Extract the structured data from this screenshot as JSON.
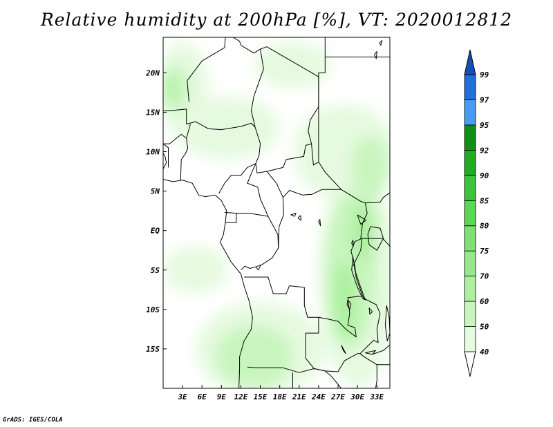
{
  "title": "Relative humidity at 200hPa [%], VT: 2020012812",
  "credit": "GrADS: IGES/COLA",
  "map": {
    "lon_range": [
      0,
      35
    ],
    "lat_range": [
      -20,
      24.5
    ],
    "lon_ticks": [
      {
        "lon": 3,
        "label": "3E"
      },
      {
        "lon": 6,
        "label": "6E"
      },
      {
        "lon": 9,
        "label": "9E"
      },
      {
        "lon": 12,
        "label": "12E"
      },
      {
        "lon": 15,
        "label": "15E"
      },
      {
        "lon": 18,
        "label": "18E"
      },
      {
        "lon": 21,
        "label": "21E"
      },
      {
        "lon": 24,
        "label": "24E"
      },
      {
        "lon": 27,
        "label": "27E"
      },
      {
        "lon": 30,
        "label": "30E"
      },
      {
        "lon": 33,
        "label": "33E"
      }
    ],
    "lat_ticks": [
      {
        "lat": 20,
        "label": "20N"
      },
      {
        "lat": 15,
        "label": "15N"
      },
      {
        "lat": 10,
        "label": "10N"
      },
      {
        "lat": 5,
        "label": "5N"
      },
      {
        "lat": 0,
        "label": "EQ"
      },
      {
        "lat": -5,
        "label": "5S"
      },
      {
        "lat": -10,
        "label": "10S"
      },
      {
        "lat": -15,
        "label": "15S"
      }
    ]
  },
  "colorbar": {
    "levels": [
      "40",
      "50",
      "60",
      "70",
      "75",
      "80",
      "85",
      "90",
      "92",
      "95",
      "97",
      "99"
    ],
    "colors": [
      "#ffffff",
      "#e6fae0",
      "#c8f5be",
      "#aef0a0",
      "#96e88a",
      "#7ee070",
      "#5cd655",
      "#3cc43a",
      "#22ab22",
      "#128f12",
      "#4a9cf0",
      "#2070d8",
      "#1450b8"
    ]
  },
  "fields": [
    {
      "level": "50",
      "color": "#e6fae0",
      "areas": [
        {
          "lon": 30,
          "lat": -6,
          "rx": 6,
          "ry": 14
        },
        {
          "lon": 15,
          "lat": -15,
          "rx": 10,
          "ry": 6
        },
        {
          "lon": 28,
          "lat": 10,
          "rx": 8,
          "ry": 6
        },
        {
          "lon": 3,
          "lat": 18,
          "rx": 4,
          "ry": 6
        },
        {
          "lon": 10,
          "lat": 13,
          "rx": 8,
          "ry": 4
        },
        {
          "lon": 5,
          "lat": -5,
          "rx": 5,
          "ry": 3
        },
        {
          "lon": 20,
          "lat": 21,
          "rx": 6,
          "ry": 3
        }
      ]
    },
    {
      "level": "60",
      "color": "#c8f5be",
      "areas": [
        {
          "lon": 29,
          "lat": -5,
          "rx": 4,
          "ry": 10
        },
        {
          "lon": 14,
          "lat": -16,
          "rx": 6,
          "ry": 4
        },
        {
          "lon": 2,
          "lat": 18,
          "rx": 2,
          "ry": 3
        },
        {
          "lon": 32,
          "lat": 8,
          "rx": 3,
          "ry": 4
        }
      ]
    },
    {
      "level": "70",
      "color": "#aef0a0",
      "areas": [
        {
          "lon": 28,
          "lat": -9,
          "rx": 2,
          "ry": 5
        },
        {
          "lon": 31,
          "lat": 0,
          "rx": 2,
          "ry": 4
        },
        {
          "lon": 1,
          "lat": 18,
          "rx": 1,
          "ry": 2
        }
      ]
    }
  ],
  "borders": {
    "coast": [
      [
        [
          0,
          6.5
        ],
        [
          1.5,
          6.2
        ],
        [
          3,
          6.4
        ],
        [
          4.5,
          6
        ],
        [
          5.5,
          4.5
        ],
        [
          6.5,
          4.3
        ],
        [
          8,
          4.5
        ],
        [
          9,
          3.8
        ],
        [
          9.8,
          2.5
        ],
        [
          9.6,
          1
        ],
        [
          9.3,
          -0.5
        ],
        [
          8.8,
          -1.5
        ],
        [
          10.5,
          -4
        ],
        [
          12,
          -5.5
        ],
        [
          12.5,
          -7
        ],
        [
          13.3,
          -9
        ],
        [
          13.8,
          -11
        ],
        [
          13.6,
          -12.5
        ],
        [
          12.5,
          -14
        ],
        [
          11.8,
          -16
        ],
        [
          11.8,
          -17.5
        ],
        [
          11.7,
          -20
        ]
      ],
      [
        [
          0,
          7.8
        ],
        [
          0.5,
          8.6
        ],
        [
          0.3,
          9.4
        ],
        [
          0,
          9.8
        ]
      ]
    ],
    "lakes": [
      [
        [
          32,
          0.5
        ],
        [
          33.5,
          0.3
        ],
        [
          34,
          -1
        ],
        [
          33,
          -2.5
        ],
        [
          31.8,
          -1.8
        ],
        [
          31.6,
          -0.5
        ],
        [
          32,
          0.5
        ]
      ],
      [
        [
          29.3,
          -3.3
        ],
        [
          29.6,
          -5
        ],
        [
          30.4,
          -7
        ],
        [
          31.2,
          -8.8
        ],
        [
          30.8,
          -8.6
        ],
        [
          29.9,
          -7
        ],
        [
          29.1,
          -5
        ],
        [
          29.3,
          -3.3
        ]
      ],
      [
        [
          29.4,
          -2
        ],
        [
          29.3,
          -1.2
        ],
        [
          29.1,
          -1.6
        ],
        [
          29.4,
          -2
        ]
      ],
      [
        [
          30,
          2
        ],
        [
          31.3,
          1.3
        ],
        [
          30.5,
          0.8
        ],
        [
          30,
          2
        ]
      ],
      [
        [
          34.5,
          -9.5
        ],
        [
          34.9,
          -11
        ],
        [
          35,
          -13
        ],
        [
          34.6,
          -14
        ],
        [
          34.3,
          -12
        ],
        [
          34.5,
          -9.5
        ]
      ],
      [
        [
          28.5,
          -8.8
        ],
        [
          29,
          -9.3
        ],
        [
          28.8,
          -10
        ],
        [
          28.4,
          -9.4
        ],
        [
          28.5,
          -8.8
        ]
      ],
      [
        [
          31.8,
          -9.8
        ],
        [
          32.3,
          -10.3
        ],
        [
          31.9,
          -10.6
        ],
        [
          31.8,
          -9.8
        ]
      ],
      [
        [
          19.7,
          2
        ],
        [
          20.3,
          1.8
        ],
        [
          20.5,
          2.2
        ],
        [
          19.7,
          2
        ]
      ],
      [
        [
          20.8,
          1.6
        ],
        [
          21.3,
          1.3
        ],
        [
          21.2,
          1.9
        ],
        [
          20.8,
          1.6
        ]
      ],
      [
        [
          24,
          1.2
        ],
        [
          24.3,
          0.6
        ],
        [
          24.2,
          1.4
        ],
        [
          24,
          1.2
        ]
      ],
      [
        [
          27.5,
          -14.5
        ],
        [
          28.2,
          -15.6
        ],
        [
          27.8,
          -15.2
        ],
        [
          27.5,
          -14.5
        ]
      ],
      [
        [
          31.2,
          -15.5
        ],
        [
          32.8,
          -15.2
        ],
        [
          32.3,
          -15.7
        ],
        [
          31.2,
          -15.5
        ]
      ],
      [
        [
          32.6,
          22.3
        ],
        [
          33,
          22.7
        ],
        [
          32.9,
          21.8
        ],
        [
          32.6,
          22.3
        ]
      ],
      [
        [
          33.4,
          23.8
        ],
        [
          33.8,
          24.1
        ],
        [
          33.6,
          23.5
        ],
        [
          33.4,
          23.8
        ]
      ]
    ],
    "frontiers": [
      [
        [
          10.8,
          24.5
        ],
        [
          11.8,
          24
        ],
        [
          12,
          23.5
        ],
        [
          14,
          22.5
        ],
        [
          15,
          23
        ]
      ],
      [
        [
          15,
          23
        ],
        [
          16,
          23.3
        ],
        [
          24,
          19.5
        ],
        [
          24,
          15.7
        ]
      ],
      [
        [
          9.6,
          24.5
        ],
        [
          9.5,
          23.2
        ],
        [
          6,
          21.5
        ],
        [
          3.7,
          19
        ],
        [
          4,
          16.3
        ]
      ],
      [
        [
          0,
          15.2
        ],
        [
          1,
          15.2
        ],
        [
          3.6,
          15.4
        ],
        [
          3.6,
          13.5
        ],
        [
          5,
          13.8
        ],
        [
          7,
          12.9
        ],
        [
          9,
          12.8
        ],
        [
          12,
          13.2
        ],
        [
          13.6,
          13.6
        ],
        [
          14.2,
          13.1
        ]
      ],
      [
        [
          15,
          23
        ],
        [
          15.5,
          20.5
        ],
        [
          14,
          17
        ],
        [
          13.6,
          15.2
        ],
        [
          14.2,
          13.1
        ],
        [
          15,
          11
        ],
        [
          14.8,
          9.5
        ],
        [
          14.3,
          8.5
        ]
      ],
      [
        [
          24,
          15.7
        ],
        [
          22.7,
          14
        ],
        [
          22.4,
          12.6
        ],
        [
          22.9,
          11
        ],
        [
          22,
          10.8
        ],
        [
          21.7,
          9.4
        ],
        [
          19,
          9
        ],
        [
          18.5,
          8
        ],
        [
          16,
          7.5
        ],
        [
          14.5,
          7.3
        ],
        [
          14.3,
          8.5
        ]
      ],
      [
        [
          24,
          19.5
        ],
        [
          24,
          8.7
        ],
        [
          23.2,
          8.3
        ],
        [
          22.9,
          11
        ]
      ],
      [
        [
          24,
          8.7
        ],
        [
          25,
          7.4
        ],
        [
          27.5,
          5.2
        ],
        [
          30.5,
          3.7
        ],
        [
          31.2,
          3.5
        ],
        [
          33.5,
          3.6
        ],
        [
          34,
          4.2
        ],
        [
          35,
          4.8
        ]
      ],
      [
        [
          24,
          19.5
        ],
        [
          24,
          20
        ],
        [
          25,
          20
        ],
        [
          25,
          22
        ],
        [
          35,
          22
        ]
      ],
      [
        [
          25,
          22
        ],
        [
          25,
          24.5
        ]
      ],
      [
        [
          14.3,
          8.5
        ],
        [
          13.7,
          7.4
        ],
        [
          13,
          6
        ],
        [
          14.6,
          5.5
        ],
        [
          15,
          4
        ],
        [
          16,
          2.2
        ],
        [
          16.2,
          1.8
        ]
      ],
      [
        [
          14.3,
          8.5
        ],
        [
          13,
          8
        ],
        [
          12,
          7
        ],
        [
          10.5,
          7
        ],
        [
          9.5,
          6
        ],
        [
          8.6,
          4.7
        ]
      ],
      [
        [
          9.5,
          2.3
        ],
        [
          11.3,
          2.2
        ],
        [
          13.3,
          2.2
        ],
        [
          15.5,
          1.9
        ],
        [
          16.2,
          1.8
        ]
      ],
      [
        [
          9.6,
          1
        ],
        [
          11.3,
          1
        ],
        [
          11.3,
          2.2
        ]
      ],
      [
        [
          16,
          7.5
        ],
        [
          17.5,
          6
        ],
        [
          18.5,
          4.2
        ],
        [
          19.5,
          5.1
        ],
        [
          21.5,
          4.5
        ],
        [
          23,
          4.6
        ],
        [
          24.5,
          5.2
        ],
        [
          25.5,
          5.2
        ],
        [
          27.5,
          5.2
        ]
      ],
      [
        [
          16.2,
          1.8
        ],
        [
          17.7,
          -0.5
        ],
        [
          17.8,
          -2.2
        ],
        [
          16.8,
          -3.5
        ],
        [
          15.3,
          -4.3
        ],
        [
          14.3,
          -4.6
        ],
        [
          13.4,
          -4.8
        ],
        [
          12.6,
          -4.5
        ],
        [
          12,
          -5
        ]
      ],
      [
        [
          18.5,
          4.2
        ],
        [
          18.6,
          2
        ],
        [
          17.9,
          0.5
        ],
        [
          17.8,
          -2.2
        ]
      ],
      [
        [
          12.5,
          -5.9
        ],
        [
          13.5,
          -5.9
        ],
        [
          16.2,
          -5.9
        ],
        [
          17,
          -8
        ],
        [
          19,
          -8
        ],
        [
          19.5,
          -7
        ],
        [
          21.8,
          -7.2
        ],
        [
          21.8,
          -9.5
        ],
        [
          22.3,
          -11
        ],
        [
          24,
          -11
        ],
        [
          24,
          -13
        ],
        [
          22,
          -13
        ],
        [
          22,
          -16.2
        ],
        [
          23.3,
          -17.5
        ],
        [
          25,
          -17.8
        ]
      ],
      [
        [
          30.7,
          -1
        ],
        [
          29.6,
          -1.4
        ],
        [
          29,
          -2.6
        ],
        [
          29.3,
          -3.5
        ],
        [
          29.6,
          -4.5
        ],
        [
          29.8,
          -6
        ],
        [
          30.8,
          -8.3
        ]
      ],
      [
        [
          30.5,
          -1
        ],
        [
          30.8,
          1
        ],
        [
          31.5,
          2.2
        ],
        [
          31.2,
          3.5
        ]
      ],
      [
        [
          30.8,
          -8.3
        ],
        [
          28.5,
          -8.5
        ],
        [
          28.8,
          -10.5
        ],
        [
          28.5,
          -12
        ],
        [
          29.6,
          -12.3
        ],
        [
          29.8,
          -13.5
        ],
        [
          28.2,
          -12.5
        ],
        [
          27,
          -11.5
        ],
        [
          25.3,
          -11.2
        ],
        [
          24,
          -11
        ]
      ],
      [
        [
          25,
          -17.8
        ],
        [
          27,
          -17.9
        ],
        [
          28,
          -16.5
        ],
        [
          30,
          -15.6
        ],
        [
          30.4,
          -15.6
        ],
        [
          32.5,
          -13.9
        ],
        [
          33.2,
          -14.2
        ],
        [
          33,
          -12.5
        ],
        [
          33.5,
          -10.5
        ],
        [
          32.9,
          -9.4
        ],
        [
          31,
          -8.6
        ],
        [
          30.8,
          -8.3
        ]
      ],
      [
        [
          13,
          -17.3
        ],
        [
          14.2,
          -17.4
        ],
        [
          18.5,
          -17.4
        ],
        [
          21,
          -18
        ],
        [
          23.3,
          -17.5
        ],
        [
          25,
          -17.8
        ]
      ],
      [
        [
          20,
          -18
        ],
        [
          20,
          -20
        ]
      ],
      [
        [
          25,
          -17.8
        ],
        [
          26,
          -18.5
        ],
        [
          27.5,
          -20
        ],
        [
          28,
          -20
        ]
      ],
      [
        [
          30.4,
          -15.6
        ],
        [
          31,
          -16
        ],
        [
          33,
          -17
        ],
        [
          33,
          -19
        ],
        [
          32.8,
          -20
        ]
      ],
      [
        [
          33,
          -17
        ],
        [
          35,
          -17
        ]
      ],
      [
        [
          32.3,
          -15.7
        ],
        [
          34,
          -15.2
        ],
        [
          35,
          -14.5
        ]
      ],
      [
        [
          29.3,
          -4.5
        ],
        [
          30.5,
          -2.5
        ],
        [
          30.7,
          -1
        ],
        [
          33.9,
          -1
        ],
        [
          35,
          -2
        ]
      ],
      [
        [
          0,
          11
        ],
        [
          1,
          11
        ],
        [
          2.8,
          12.2
        ],
        [
          3.6,
          11.7
        ],
        [
          3.8,
          10.4
        ],
        [
          3.4,
          9.7
        ],
        [
          2.8,
          9
        ]
      ],
      [
        [
          2.7,
          6.4
        ],
        [
          2.8,
          9
        ]
      ],
      [
        [
          3.6,
          11.7
        ],
        [
          4.2,
          13.5
        ]
      ],
      [
        [
          0,
          11
        ],
        [
          0.8,
          10.5
        ],
        [
          0.8,
          8
        ]
      ],
      [
        [
          14.3,
          -4.6
        ],
        [
          14.7,
          -5
        ],
        [
          15.1,
          -4.3
        ]
      ]
    ]
  }
}
